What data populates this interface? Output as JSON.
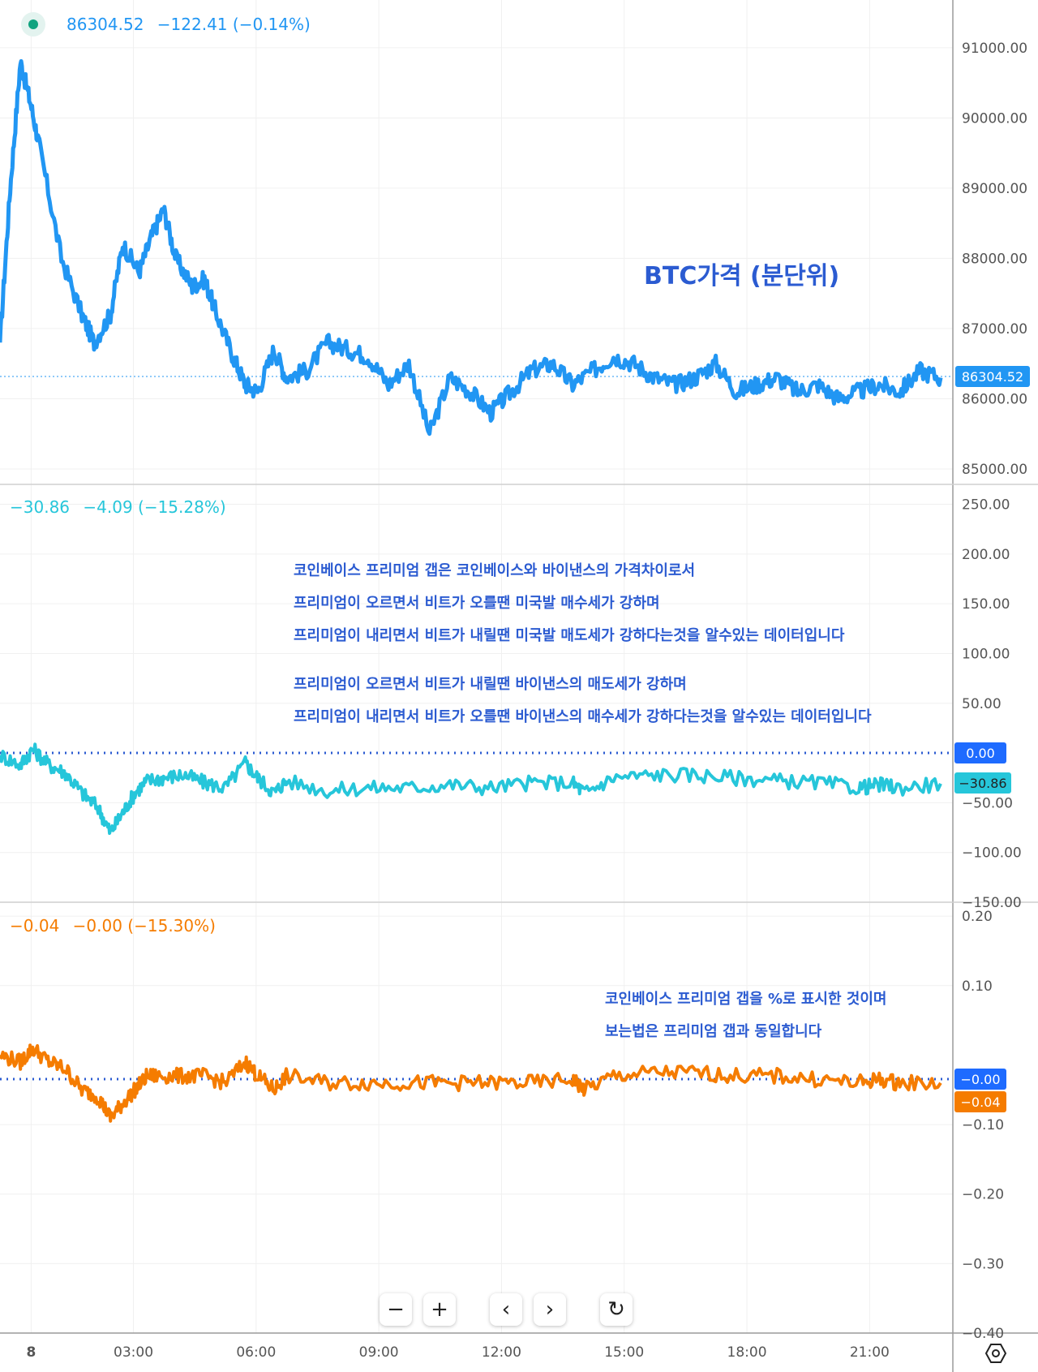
{
  "legends": {
    "price": {
      "dot": true,
      "value": "86304.52",
      "change": "−122.41 (−0.14%)"
    },
    "gap": {
      "value": "−30.86",
      "change": "−4.09 (−15.28%)"
    },
    "pct": {
      "value": "−0.04",
      "change": "−0.00 (−15.30%)"
    }
  },
  "annotations": {
    "price_title": "BTC가격 (분단위)",
    "gap_lines": [
      "코인베이스 프리미엄 갭은 코인베이스와 바이낸스의 가격차이로서",
      "프리미엄이 오르면서 비트가 오를땐 미국발 매수세가 강하며",
      "프리미엄이 내리면서 비트가 내릴땐 미국발 매도세가 강하다는것을 알수있는 데이터입니다",
      "프리미엄이 오르면서 비트가 내릴땐 바이낸스의 매도세가 강하며",
      "프리미엄이 내리면서 비트가 오를땐 바이낸스의 매수세가 강하다는것을 알수있는 데이터입니다"
    ],
    "pct_lines": [
      "코인베이스 프리미엄 갭을 %로 표시한 것이며",
      "보는법은 프리미엄 갭과 동일합니다"
    ]
  },
  "price_labels": {
    "last": "86304.52"
  },
  "gap_labels": {
    "zero": "0.00",
    "last": "−30.86"
  },
  "pct_labels": {
    "zero": "−0.00",
    "last": "−0.04"
  },
  "toolbar": {
    "zoom_out": "−",
    "zoom_in": "+",
    "back": "‹",
    "forward": "›",
    "reset": "↻"
  },
  "colors": {
    "price": "#2196f3",
    "gap": "#26c6da",
    "pct": "#f57c00",
    "note": "#2b5bd1"
  },
  "chart_data": [
    {
      "type": "line",
      "title": "BTC가격 (분단위)",
      "xlabel": "",
      "ylabel": "",
      "x_ticks": [
        "8",
        "03:00",
        "06:00",
        "09:00",
        "12:00",
        "15:00",
        "18:00",
        "21:00"
      ],
      "y_ticks": [
        "91000.00",
        "90000.00",
        "89000.00",
        "88000.00",
        "87000.00",
        "86000.00",
        "85000.00"
      ],
      "ylim": [
        84780,
        91680
      ],
      "x": [
        0,
        0.25,
        0.5,
        0.75,
        1.0,
        1.5,
        2.0,
        2.3,
        2.7,
        3.0,
        3.4,
        3.7,
        4.0,
        4.3,
        4.7,
        5.0,
        5.3,
        5.7,
        6.0,
        6.3,
        6.7,
        7.0,
        7.5,
        8.0,
        8.5,
        9.0,
        9.5,
        10.0,
        10.5,
        11.0,
        11.5,
        12.0,
        12.5,
        13.0,
        13.5,
        14.0,
        14.5,
        15.0,
        15.5,
        16.0,
        16.5,
        17.0,
        17.5,
        18.0,
        18.5,
        19.0,
        19.5,
        20.0,
        20.5,
        21.0,
        21.5,
        22.0,
        22.5,
        23.0
      ],
      "series": [
        {
          "values": [
            86800,
            89000,
            90800,
            90200,
            89500,
            88000,
            87200,
            86800,
            87200,
            88200,
            87800,
            88300,
            88700,
            88000,
            87600,
            87700,
            87200,
            86600,
            86200,
            86100,
            86700,
            86300,
            86400,
            86800,
            86700,
            86600,
            86200,
            86500,
            85500,
            86300,
            86100,
            85800,
            86100,
            86400,
            86500,
            86200,
            86400,
            86600,
            86500,
            86300,
            86200,
            86300,
            86500,
            86100,
            86200,
            86300,
            86100,
            86200,
            86000,
            86100,
            86200,
            86100,
            86400,
            86300
          ]
        }
      ]
    },
    {
      "type": "line",
      "title": "",
      "xlabel": "",
      "ylabel": "",
      "y_ticks": [
        "250.00",
        "200.00",
        "150.00",
        "100.00",
        "50.00",
        "−50.00",
        "−100.00",
        "−150.00"
      ],
      "ylim": [
        -150,
        270
      ],
      "x": [
        0,
        0.5,
        0.8,
        1.2,
        1.6,
        2.0,
        2.4,
        2.7,
        3.0,
        3.3,
        3.6,
        4.0,
        4.5,
        5.0,
        5.5,
        6.0,
        6.3,
        6.7,
        7.0,
        8.0,
        9.0,
        10.0,
        11.0,
        12.0,
        13.0,
        14.0,
        14.3,
        15.0,
        16.0,
        17.0,
        18.0,
        19.0,
        20.0,
        21.0,
        21.5,
        22.0,
        23.0
      ],
      "series": [
        {
          "values": [
            -2,
            -12,
            4,
            -12,
            -20,
            -40,
            -55,
            -80,
            -60,
            -40,
            -28,
            -25,
            -22,
            -30,
            -35,
            -10,
            -25,
            -40,
            -28,
            -38,
            -35,
            -35,
            -32,
            -35,
            -30,
            -30,
            -40,
            -25,
            -22,
            -22,
            -25,
            -28,
            -30,
            -35,
            -32,
            -35,
            -30.86
          ]
        }
      ]
    },
    {
      "type": "line",
      "title": "",
      "xlabel": "",
      "ylabel": "",
      "y_ticks": [
        "0.20",
        "0.10",
        "−0.10",
        "−0.20",
        "−0.30",
        "−0.40"
      ],
      "ylim": [
        -0.4,
        0.22
      ],
      "x": [
        0,
        0.5,
        0.8,
        1.2,
        1.6,
        2.0,
        2.4,
        2.7,
        3.0,
        3.3,
        3.6,
        4.0,
        4.5,
        5.0,
        5.5,
        6.0,
        6.3,
        6.7,
        7.0,
        8.0,
        9.0,
        10.0,
        11.0,
        12.0,
        13.0,
        14.0,
        14.3,
        15.0,
        16.0,
        17.0,
        18.0,
        19.0,
        20.0,
        21.0,
        21.5,
        22.0,
        23.0
      ],
      "series": [
        {
          "values": [
            0.0,
            -0.01,
            0.01,
            -0.01,
            -0.02,
            -0.05,
            -0.06,
            -0.09,
            -0.07,
            -0.05,
            -0.03,
            -0.03,
            -0.03,
            -0.03,
            -0.04,
            -0.01,
            -0.03,
            -0.05,
            -0.03,
            -0.04,
            -0.04,
            -0.04,
            -0.04,
            -0.04,
            -0.04,
            -0.035,
            -0.05,
            -0.03,
            -0.025,
            -0.025,
            -0.03,
            -0.03,
            -0.035,
            -0.04,
            -0.035,
            -0.04,
            -0.04
          ]
        }
      ]
    }
  ]
}
